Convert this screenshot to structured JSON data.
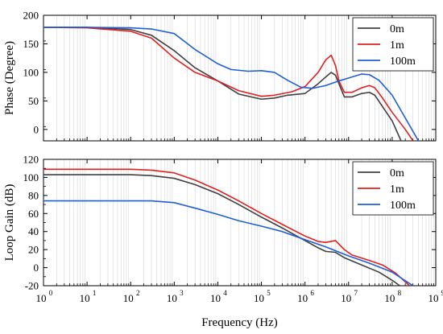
{
  "chart_data": [
    {
      "type": "line",
      "title": "",
      "xlabel": "",
      "ylabel": "Phase (Degree)",
      "xscale": "log",
      "xlim": [
        1,
        1000000000
      ],
      "ylim": [
        -20,
        200
      ],
      "yticks": [
        0,
        50,
        100,
        150,
        200
      ],
      "grid": "vertical minor log gridlines",
      "legend_position": "top-right",
      "series": [
        {
          "name": "0m",
          "color": "#404040",
          "points": [
            [
              1,
              179
            ],
            [
              10,
              179
            ],
            [
              100,
              175
            ],
            [
              300,
              165
            ],
            [
              1000,
              138
            ],
            [
              3000,
              108
            ],
            [
              10000,
              85
            ],
            [
              30000,
              62
            ],
            [
              100000,
              53
            ],
            [
              200000,
              55
            ],
            [
              400000,
              60
            ],
            [
              1000000,
              63
            ],
            [
              2000000,
              80
            ],
            [
              3000000,
              92
            ],
            [
              4000000,
              100
            ],
            [
              5000000,
              95
            ],
            [
              6000000,
              80
            ],
            [
              8000000,
              57
            ],
            [
              12000000,
              57
            ],
            [
              20000000,
              63
            ],
            [
              30000000,
              65
            ],
            [
              40000000,
              60
            ],
            [
              60000000,
              40
            ],
            [
              100000000,
              15
            ],
            [
              160000000,
              -20
            ]
          ]
        },
        {
          "name": "1m",
          "color": "#e02020",
          "points": [
            [
              1,
              179
            ],
            [
              10,
              178
            ],
            [
              100,
              172
            ],
            [
              300,
              160
            ],
            [
              1000,
              125
            ],
            [
              3000,
              100
            ],
            [
              10000,
              85
            ],
            [
              30000,
              68
            ],
            [
              100000,
              58
            ],
            [
              200000,
              60
            ],
            [
              500000,
              66
            ],
            [
              1000000,
              75
            ],
            [
              2000000,
              100
            ],
            [
              3000000,
              122
            ],
            [
              4000000,
              130
            ],
            [
              5000000,
              112
            ],
            [
              6000000,
              85
            ],
            [
              8000000,
              65
            ],
            [
              12000000,
              65
            ],
            [
              20000000,
              73
            ],
            [
              30000000,
              77
            ],
            [
              40000000,
              73
            ],
            [
              60000000,
              55
            ],
            [
              100000000,
              30
            ],
            [
              200000000,
              0
            ],
            [
              300000000,
              -20
            ]
          ]
        },
        {
          "name": "100m",
          "color": "#1f5fd6",
          "points": [
            [
              1,
              179
            ],
            [
              10,
              179
            ],
            [
              100,
              178
            ],
            [
              300,
              176
            ],
            [
              1000,
              168
            ],
            [
              3000,
              140
            ],
            [
              10000,
              115
            ],
            [
              20000,
              105
            ],
            [
              50000,
              102
            ],
            [
              100000,
              103
            ],
            [
              200000,
              100
            ],
            [
              400000,
              86
            ],
            [
              800000,
              74
            ],
            [
              1500000,
              72
            ],
            [
              3000000,
              77
            ],
            [
              6000000,
              85
            ],
            [
              12000000,
              92
            ],
            [
              20000000,
              97
            ],
            [
              30000000,
              96
            ],
            [
              50000000,
              86
            ],
            [
              100000000,
              60
            ],
            [
              200000000,
              20
            ],
            [
              400000000,
              -20
            ]
          ]
        }
      ]
    },
    {
      "type": "line",
      "title": "",
      "xlabel": "Frequency (Hz)",
      "ylabel": "Loop Gain (dB)",
      "xscale": "log",
      "xlim": [
        1,
        1000000000
      ],
      "ylim": [
        -20,
        120
      ],
      "yticks": [
        -20,
        0,
        20,
        40,
        60,
        80,
        100,
        120
      ],
      "xtick_labels": [
        "10",
        "10",
        "10",
        "10",
        "10",
        "10",
        "10",
        "10",
        "10",
        "10"
      ],
      "xtick_exponents": [
        "0",
        "1",
        "2",
        "3",
        "4",
        "5",
        "6",
        "7",
        "8",
        "9"
      ],
      "grid": "vertical minor log gridlines",
      "legend_position": "top-right",
      "series": [
        {
          "name": "0m",
          "color": "#404040",
          "points": [
            [
              1,
              103
            ],
            [
              10,
              103
            ],
            [
              100,
              103
            ],
            [
              300,
              102
            ],
            [
              1000,
              99
            ],
            [
              3000,
              92
            ],
            [
              10000,
              82
            ],
            [
              30000,
              70
            ],
            [
              100000,
              56
            ],
            [
              300000,
              44
            ],
            [
              1000000,
              30
            ],
            [
              2000000,
              22
            ],
            [
              3000000,
              18
            ],
            [
              5000000,
              17
            ],
            [
              8000000,
              11
            ],
            [
              20000000,
              3
            ],
            [
              50000000,
              -5
            ],
            [
              100000000,
              -14
            ],
            [
              150000000,
              -20
            ]
          ]
        },
        {
          "name": "1m",
          "color": "#e02020",
          "points": [
            [
              1,
              109
            ],
            [
              10,
              109
            ],
            [
              100,
              109
            ],
            [
              300,
              108
            ],
            [
              1000,
              105
            ],
            [
              3000,
              97
            ],
            [
              10000,
              86
            ],
            [
              30000,
              74
            ],
            [
              100000,
              60
            ],
            [
              300000,
              48
            ],
            [
              1000000,
              35
            ],
            [
              2000000,
              29
            ],
            [
              3000000,
              28
            ],
            [
              5000000,
              30
            ],
            [
              8000000,
              20
            ],
            [
              12000000,
              14
            ],
            [
              30000000,
              8
            ],
            [
              60000000,
              3
            ],
            [
              120000000,
              -6
            ],
            [
              250000000,
              -20
            ]
          ]
        },
        {
          "name": "100m",
          "color": "#1f5fd6",
          "points": [
            [
              1,
              74
            ],
            [
              10,
              74
            ],
            [
              100,
              74
            ],
            [
              300,
              74
            ],
            [
              1000,
              72
            ],
            [
              3000,
              66
            ],
            [
              10000,
              59
            ],
            [
              30000,
              52
            ],
            [
              100000,
              46
            ],
            [
              300000,
              40
            ],
            [
              1000000,
              31
            ],
            [
              3000000,
              23
            ],
            [
              10000000,
              13
            ],
            [
              30000000,
              5
            ],
            [
              100000000,
              -5
            ],
            [
              300000000,
              -20
            ]
          ]
        }
      ]
    }
  ]
}
